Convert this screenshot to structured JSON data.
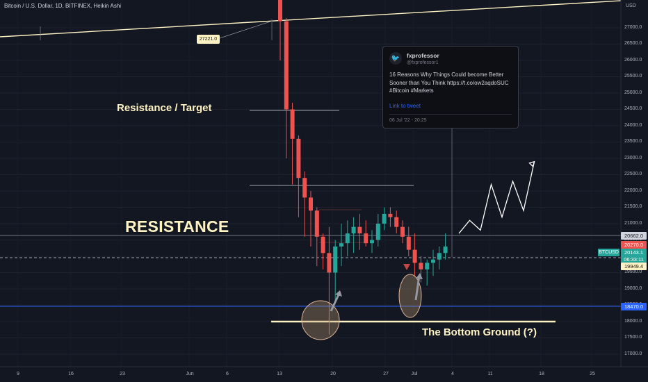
{
  "header": {
    "symbol_title": "Bitcoin / U.S. Dollar, 1D, BITFINEX, Heikin Ashi"
  },
  "annotations": {
    "resistance_target": "Resistance / Target",
    "resistance": "RESISTANCE",
    "bottom_ground": "The Bottom Ground (?)",
    "callout_27221": "27221.0"
  },
  "tweet": {
    "name": "fxprofessor",
    "handle": "@fxprofessor1",
    "text": "16 Reasons Why Things Could become Better Sooner than You Think https://t.co/ow2aqdoSUC #Bitcoin #Markets",
    "link_label": "Link to tweet",
    "date": "06 Jul '22 - 20:25"
  },
  "price_axis": {
    "currency": "USD",
    "ticks": [
      "27000.0",
      "26500.0",
      "26000.0",
      "25500.0",
      "25000.0",
      "24500.0",
      "24000.0",
      "23500.0",
      "23000.0",
      "22500.0",
      "22000.0",
      "21500.0",
      "21000.0",
      "20500.0",
      "20000.0",
      "19500.0",
      "19000.0",
      "18500.0",
      "18000.0",
      "17500.0",
      "17000.0"
    ]
  },
  "price_tags": {
    "level_20662": "20662.0",
    "level_20270": "20270.0",
    "symbol": "BTCUSD",
    "last_price": "20143.1",
    "countdown": "06:33:11",
    "level_19949": "19949.4",
    "level_18470": "18470.0"
  },
  "time_axis": {
    "ticks": [
      "9",
      "16",
      "23",
      "Jun",
      "6",
      "13",
      "20",
      "27",
      "Jul",
      "4",
      "11",
      "18",
      "25"
    ]
  },
  "colors": {
    "background": "#131722",
    "up_candle": "#26a69a",
    "down_candle": "#ef5350",
    "annotation_text": "#fff3c4",
    "support_line": "#2962ff",
    "tweet_link": "#2962ff"
  },
  "chart_data": {
    "type": "candlestick",
    "chart_style": "Heikin Ashi",
    "symbol": "BTCUSD",
    "timeframe": "1D",
    "exchange": "BITFINEX",
    "y_range": [
      16700,
      27900
    ],
    "grid": true,
    "candles_ohlc": [
      [
        28500,
        28600,
        26000,
        27200
      ],
      [
        27200,
        27300,
        23000,
        24500
      ],
      [
        24500,
        24700,
        22200,
        23600
      ],
      [
        23600,
        23700,
        21200,
        22400
      ],
      [
        22400,
        22600,
        20600,
        21800
      ],
      [
        21800,
        22000,
        20300,
        21400
      ],
      [
        21400,
        21500,
        19700,
        20600
      ],
      [
        20600,
        20700,
        19600,
        20100
      ],
      [
        20100,
        20900,
        17600,
        19500
      ],
      [
        19500,
        20500,
        18600,
        20300
      ],
      [
        20300,
        21000,
        19700,
        20400
      ],
      [
        20400,
        21100,
        20000,
        20700
      ],
      [
        20700,
        21200,
        20100,
        20900
      ],
      [
        20900,
        21300,
        20200,
        20700
      ],
      [
        20700,
        21100,
        20300,
        20400
      ],
      [
        20400,
        20800,
        20100,
        20500
      ],
      [
        20500,
        21300,
        20300,
        21000
      ],
      [
        21000,
        21500,
        20800,
        21300
      ],
      [
        21300,
        21500,
        20900,
        21200
      ],
      [
        21200,
        21400,
        20700,
        20900
      ],
      [
        20900,
        21100,
        20400,
        20600
      ],
      [
        20600,
        20900,
        20000,
        20200
      ],
      [
        20200,
        20700,
        19400,
        19800
      ],
      [
        19800,
        20000,
        19200,
        19600
      ],
      [
        19600,
        19900,
        19100,
        19800
      ],
      [
        19800,
        20200,
        19400,
        19900
      ],
      [
        19900,
        20300,
        19600,
        20100
      ],
      [
        20100,
        20700,
        19900,
        20300
      ]
    ],
    "levels": {
      "resistance": 20662.0,
      "last_price": 20143.1,
      "dashed_price_line": 20000,
      "support": 18470.0,
      "bottom_ground": 18000,
      "resistance_target_upper": 24500,
      "resistance_target_lower": 22200
    },
    "projection_path": [
      20700,
      21100,
      20800,
      22200,
      21200,
      22300,
      21400,
      22900
    ],
    "trendline_price_at_callout": 27221.0
  }
}
